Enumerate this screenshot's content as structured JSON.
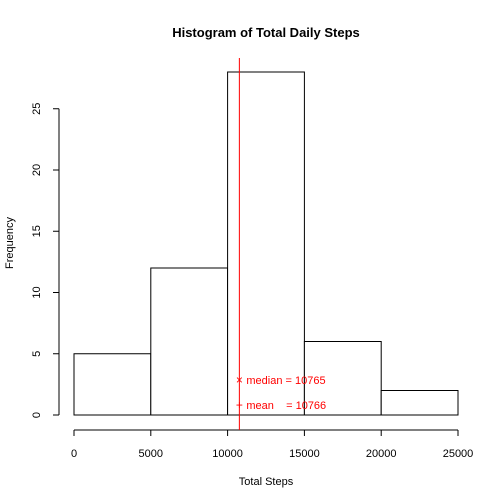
{
  "chart_data": {
    "type": "bar",
    "title": "Histogram of Total Daily Steps",
    "xlabel": "Total Steps",
    "ylabel": "Frequency",
    "bins": [
      {
        "from": 0,
        "to": 5000,
        "count": 5
      },
      {
        "from": 5000,
        "to": 10000,
        "count": 12
      },
      {
        "from": 10000,
        "to": 15000,
        "count": 28
      },
      {
        "from": 15000,
        "to": 20000,
        "count": 6
      },
      {
        "from": 20000,
        "to": 25000,
        "count": 2
      }
    ],
    "xlim": [
      0,
      25000
    ],
    "ylim": [
      0,
      28
    ],
    "x_ticks": [
      0,
      5000,
      10000,
      15000,
      20000,
      25000
    ],
    "y_ticks": [
      0,
      5,
      10,
      15,
      20,
      25
    ],
    "reference_line": {
      "x": 10766,
      "color": "#ff0000"
    },
    "legend": {
      "position": "bottom-center",
      "color": "#ff0000",
      "items": [
        {
          "symbol": "×",
          "text": "median = 10765"
        },
        {
          "symbol": "+",
          "text": "mean    = 10766"
        }
      ]
    },
    "grid": false,
    "bar_fill": "#ffffff",
    "bar_stroke": "#000000"
  }
}
